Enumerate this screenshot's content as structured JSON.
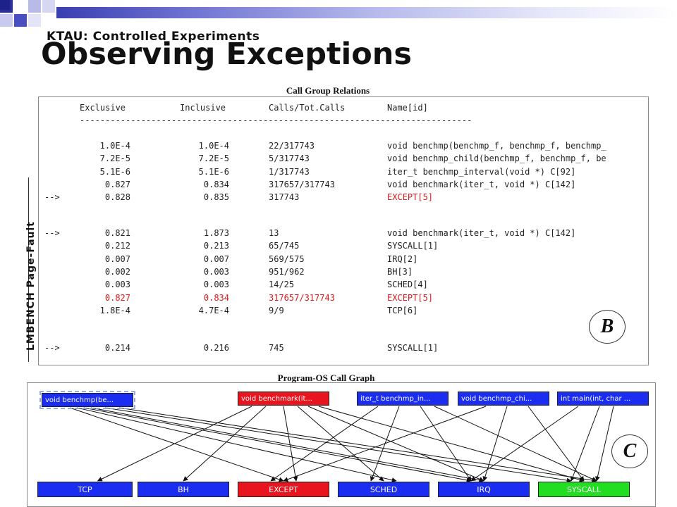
{
  "slide": {
    "subtitle": "KTAU: Controlled Experiments",
    "title": "Observing Exceptions",
    "side_label": "LMBENCH Page-Fault",
    "caption_top": "Call Group Relations",
    "caption_bottom": "Program-OS Call Graph",
    "badge_b": "B",
    "badge_c": "C"
  },
  "table": {
    "headers": [
      "Exclusive",
      "Inclusive",
      "Calls/Tot.Calls",
      "Name[id]"
    ],
    "separator": "-----------------------------------------------------------------------------",
    "group1": [
      {
        "marker": "",
        "exclusive": "1.0E-4",
        "inclusive": "1.0E-4",
        "calls": "22/317743",
        "name": "void benchmp(benchmp_f, benchmp_f, benchmp_",
        "red": false
      },
      {
        "marker": "",
        "exclusive": "7.2E-5",
        "inclusive": "7.2E-5",
        "calls": "5/317743",
        "name": "void benchmp_child(benchmp_f, benchmp_f, be",
        "red": false
      },
      {
        "marker": "",
        "exclusive": "5.1E-6",
        "inclusive": "5.1E-6",
        "calls": "1/317743",
        "name": "iter_t benchmp_interval(void *) C[92]",
        "red": false
      },
      {
        "marker": "",
        "exclusive": "0.827",
        "inclusive": "0.834",
        "calls": "317657/317743",
        "name": "void benchmark(iter_t, void *) C[142]",
        "red": false
      },
      {
        "marker": "-->",
        "exclusive": "0.828",
        "inclusive": "0.835",
        "calls": "317743",
        "name": "EXCEPT[5]",
        "red": false,
        "name_red": true
      }
    ],
    "group2": [
      {
        "marker": "-->",
        "exclusive": "0.821",
        "inclusive": "1.873",
        "calls": "13",
        "name": "void benchmark(iter_t, void *) C[142]",
        "red": false
      },
      {
        "marker": "",
        "exclusive": "0.212",
        "inclusive": "0.213",
        "calls": "65/745",
        "name": "SYSCALL[1]",
        "red": false
      },
      {
        "marker": "",
        "exclusive": "0.007",
        "inclusive": "0.007",
        "calls": "569/575",
        "name": "IRQ[2]",
        "red": false
      },
      {
        "marker": "",
        "exclusive": "0.002",
        "inclusive": "0.003",
        "calls": "951/962",
        "name": "BH[3]",
        "red": false
      },
      {
        "marker": "",
        "exclusive": "0.003",
        "inclusive": "0.003",
        "calls": "14/25",
        "name": "SCHED[4]",
        "red": false
      },
      {
        "marker": "",
        "exclusive": "0.827",
        "inclusive": "0.834",
        "calls": "317657/317743",
        "name": "EXCEPT[5]",
        "red": true
      },
      {
        "marker": "",
        "exclusive": "1.8E-4",
        "inclusive": "4.7E-4",
        "calls": "9/9",
        "name": "TCP[6]",
        "red": false
      }
    ],
    "group3": [
      {
        "marker": "-->",
        "exclusive": "0.214",
        "inclusive": "0.216",
        "calls": "745",
        "name": "SYSCALL[1]",
        "red": false
      }
    ]
  },
  "graph": {
    "top_nodes": [
      {
        "label": "void benchmp(be...",
        "color": "blue",
        "selected": true
      },
      {
        "label": "void benchmark(it...",
        "color": "red",
        "selected": false
      },
      {
        "label": "iter_t benchmp_in...",
        "color": "blue",
        "selected": false
      },
      {
        "label": "void benchmp_chi...",
        "color": "blue",
        "selected": false
      },
      {
        "label": "int main(int, char ...",
        "color": "blue",
        "selected": false
      }
    ],
    "bottom_nodes": [
      {
        "label": "TCP",
        "color": "blue"
      },
      {
        "label": "BH",
        "color": "blue"
      },
      {
        "label": "EXCEPT",
        "color": "red"
      },
      {
        "label": "SCHED",
        "color": "blue"
      },
      {
        "label": "IRQ",
        "color": "blue"
      },
      {
        "label": "SYSCALL",
        "color": "green"
      }
    ]
  }
}
